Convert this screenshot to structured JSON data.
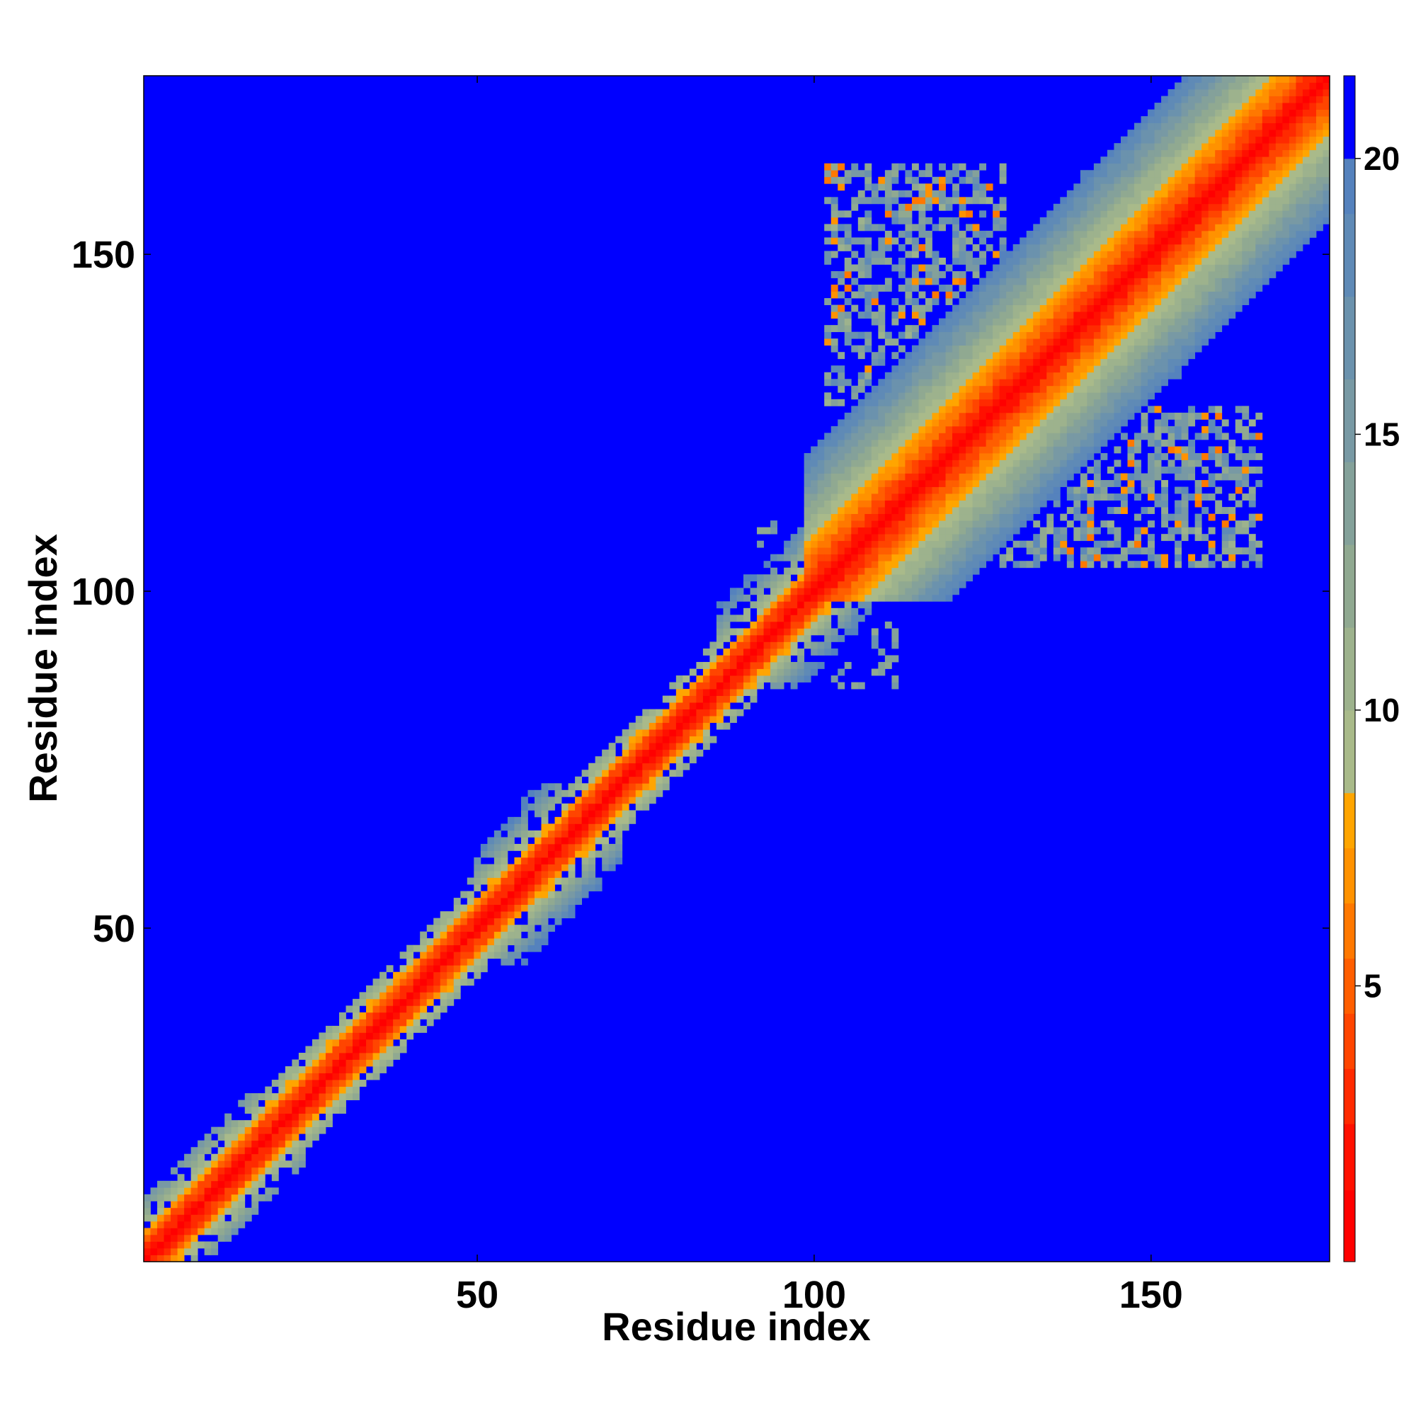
{
  "chart_data": {
    "type": "heatmap",
    "title": "",
    "xlabel": "Residue index",
    "ylabel": "Residue index",
    "n_residues": 176,
    "xlim": [
      1,
      176
    ],
    "ylim": [
      1,
      176
    ],
    "x_ticks": [
      50,
      100,
      150
    ],
    "y_ticks": [
      50,
      100,
      150
    ],
    "colorbar": {
      "min": 0,
      "max": 21.5,
      "ticks": [
        5,
        10,
        15,
        20
      ],
      "levels": [
        {
          "upper": 1.3,
          "color": "#ff0000"
        },
        {
          "upper": 2.5,
          "color": "#ff1000"
        },
        {
          "upper": 3.5,
          "color": "#ff2a00"
        },
        {
          "upper": 4.5,
          "color": "#ff4500"
        },
        {
          "upper": 5.5,
          "color": "#ff5e00"
        },
        {
          "upper": 6.5,
          "color": "#ff7800"
        },
        {
          "upper": 7.5,
          "color": "#ff9200"
        },
        {
          "upper": 8.5,
          "color": "#ffa500"
        },
        {
          "upper": 10.0,
          "color": "#a9ba8a"
        },
        {
          "upper": 11.5,
          "color": "#9db28d"
        },
        {
          "upper": 13.0,
          "color": "#90a991"
        },
        {
          "upper": 14.5,
          "color": "#84a19a"
        },
        {
          "upper": 16.0,
          "color": "#7899a4"
        },
        {
          "upper": 17.5,
          "color": "#6b92ad"
        },
        {
          "upper": 19.0,
          "color": "#5f8ab6"
        },
        {
          "upper": 20.0,
          "color": "#5582bd"
        },
        {
          "upper": 21.5,
          "color": "#0000ff"
        }
      ]
    },
    "background_color": "#0000ff",
    "diagonal_band": "distance rises from ~0 on the diagonal to ~20 at |i-j|~20 for i,j>100; narrower band (|i-j|<=7) for i,j<100",
    "contact_regions": [
      {
        "x_range": [
          102,
          130
        ],
        "y_range": [
          125,
          163
        ],
        "note": "off-diagonal block upper-left of diagonal"
      },
      {
        "x_range": [
          125,
          166
        ],
        "y_range": [
          104,
          131
        ],
        "note": "symmetric off-diagonal block right of diagonal"
      },
      {
        "x_range": [
          50,
          70
        ],
        "y_range": [
          45,
          70
        ],
        "note": "widened band segment"
      },
      {
        "x_range": [
          90,
          112
        ],
        "y_range": [
          86,
          112
        ],
        "note": "widened band segment"
      },
      {
        "x_range": [
          5,
          25
        ],
        "y_range": [
          1,
          25
        ],
        "note": "widened band segment near origin"
      }
    ]
  }
}
